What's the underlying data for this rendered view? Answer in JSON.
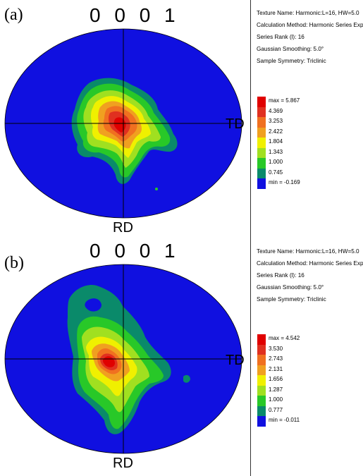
{
  "panels": [
    {
      "label": "(a)",
      "plane": "0 0 0 1",
      "td_label": "TD",
      "rd_label": "RD",
      "info": {
        "texture_name": "Texture Name: Harmonic:L=16, HW=5.0",
        "calc_method": "Calculation Method: Harmonic Series Expansion",
        "series_rank": "Series Rank (l): 16",
        "smoothing": "Gaussian Smoothing: 5.0°",
        "symmetry": "Sample Symmetry: Triclinic"
      },
      "legend": [
        "max = 5.867",
        "4.369",
        "3.253",
        "2.422",
        "1.804",
        "1.343",
        "1.000",
        "0.745",
        "min = -0.169"
      ]
    },
    {
      "label": "(b)",
      "plane": "0 0 0 1",
      "td_label": "TD",
      "rd_label": "RD",
      "info": {
        "texture_name": "Texture Name: Harmonic:L=16, HW=5.0",
        "calc_method": "Calculation Method: Harmonic Series Expansion",
        "series_rank": "Series Rank (l): 16",
        "smoothing": "Gaussian Smoothing: 5.0°",
        "symmetry": "Sample Symmetry: Triclinic"
      },
      "legend": [
        "max = 4.542",
        "3.530",
        "2.743",
        "2.131",
        "1.656",
        "1.287",
        "1.000",
        "0.777",
        "min = -0.011"
      ]
    }
  ],
  "colors": {
    "background": "#1010e0",
    "level_1": "#0a8a6a",
    "level_2": "#28c828",
    "level_3": "#a0e020",
    "level_4": "#f0f000",
    "level_5": "#f0a020",
    "level_6": "#f07020",
    "level_7": "#e03020",
    "level_8": "#e00000"
  }
}
